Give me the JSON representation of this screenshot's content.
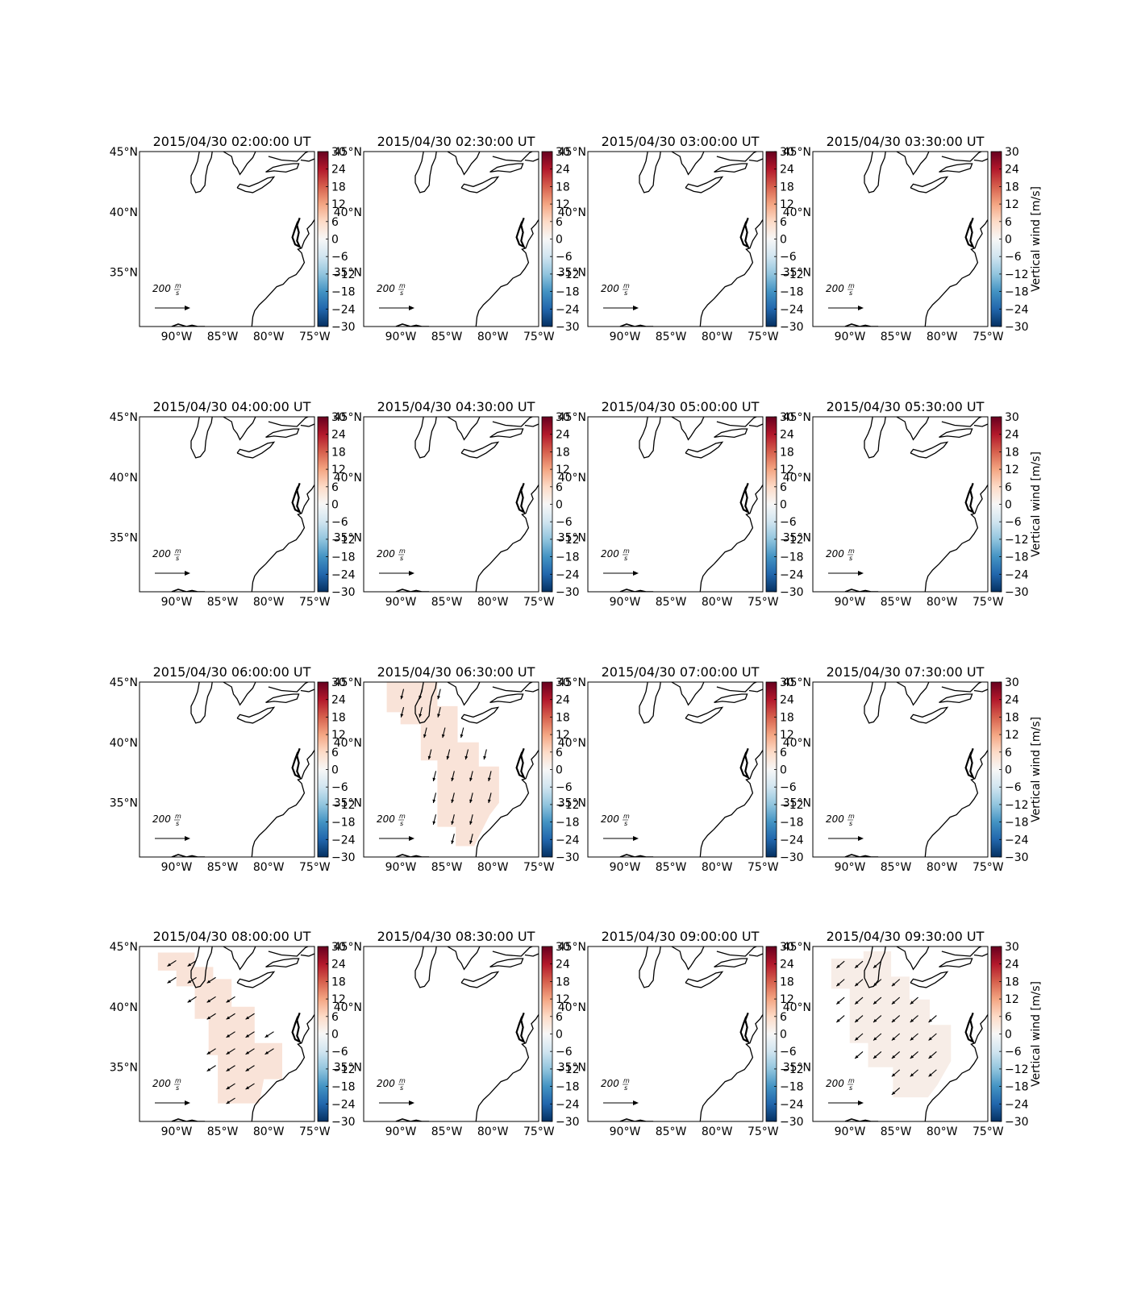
{
  "figure": {
    "colormap": [
      "#053061",
      "#2166ac",
      "#4393c3",
      "#92c5de",
      "#d1e5f0",
      "#f7f7f7",
      "#fddbc7",
      "#f4a582",
      "#d6604d",
      "#b2182b",
      "#67001f"
    ],
    "colorbar_ticks": [
      "30",
      "24",
      "18",
      "12",
      "6",
      "0",
      "−6",
      "−12",
      "−18",
      "−24",
      "−30"
    ],
    "colorbar_label": "Vertical wind [m/s]",
    "lat_ticks": [
      "45°N",
      "40°N",
      "35°N"
    ],
    "lon_ticks": [
      "90°W",
      "85°W",
      "80°W",
      "75°W"
    ],
    "reference_arrow_number": "200",
    "reference_arrow_unit_num": "m",
    "reference_arrow_unit_den": "s",
    "fill_color": "#f9e3d8",
    "fill_color_alt": "#f7ede7",
    "coastline_color": "#000000"
  },
  "chart_data": [
    {
      "type": "quiver-map",
      "title": "2015/04/30 02:00:00 UT",
      "field": "none",
      "colorbar_label_visible": false,
      "lat_range": [
        30.5,
        45
      ],
      "lon_range": [
        -93.5,
        -74.5
      ],
      "clim": [
        -30,
        30
      ]
    },
    {
      "type": "quiver-map",
      "title": "2015/04/30 02:30:00 UT",
      "field": "none",
      "colorbar_label_visible": false,
      "lat_range": [
        30.5,
        45
      ],
      "lon_range": [
        -93.5,
        -74.5
      ],
      "clim": [
        -30,
        30
      ]
    },
    {
      "type": "quiver-map",
      "title": "2015/04/30 03:00:00 UT",
      "field": "none",
      "colorbar_label_visible": false,
      "lat_range": [
        30.5,
        45
      ],
      "lon_range": [
        -93.5,
        -74.5
      ],
      "clim": [
        -30,
        30
      ]
    },
    {
      "type": "quiver-map",
      "title": "2015/04/30 03:30:00 UT",
      "field": "none",
      "colorbar_label_visible": true,
      "lat_range": [
        30.5,
        45
      ],
      "lon_range": [
        -93.5,
        -74.5
      ],
      "clim": [
        -30,
        30
      ]
    },
    {
      "type": "quiver-map",
      "title": "2015/04/30 04:00:00 UT",
      "field": "none",
      "colorbar_label_visible": false,
      "lat_range": [
        30.5,
        45
      ],
      "lon_range": [
        -93.5,
        -74.5
      ],
      "clim": [
        -30,
        30
      ]
    },
    {
      "type": "quiver-map",
      "title": "2015/04/30 04:30:00 UT",
      "field": "none",
      "colorbar_label_visible": false,
      "lat_range": [
        30.5,
        45
      ],
      "lon_range": [
        -93.5,
        -74.5
      ],
      "clim": [
        -30,
        30
      ]
    },
    {
      "type": "quiver-map",
      "title": "2015/04/30 05:00:00 UT",
      "field": "none",
      "colorbar_label_visible": false,
      "lat_range": [
        30.5,
        45
      ],
      "lon_range": [
        -93.5,
        -74.5
      ],
      "clim": [
        -30,
        30
      ]
    },
    {
      "type": "quiver-map",
      "title": "2015/04/30 05:30:00 UT",
      "field": "none",
      "colorbar_label_visible": true,
      "lat_range": [
        30.5,
        45
      ],
      "lon_range": [
        -93.5,
        -74.5
      ],
      "clim": [
        -30,
        30
      ]
    },
    {
      "type": "quiver-map",
      "title": "2015/04/30 06:00:00 UT",
      "field": "none",
      "colorbar_label_visible": false,
      "lat_range": [
        30.5,
        45
      ],
      "lon_range": [
        -93.5,
        -74.5
      ],
      "clim": [
        -30,
        30
      ]
    },
    {
      "type": "quiver-map",
      "title": "2015/04/30 06:30:00 UT",
      "field": "A",
      "colorbar_label_visible": false,
      "lat_range": [
        30.5,
        45
      ],
      "lon_range": [
        -93.5,
        -74.5
      ],
      "clim": [
        -30,
        30
      ]
    },
    {
      "type": "quiver-map",
      "title": "2015/04/30 07:00:00 UT",
      "field": "none",
      "colorbar_label_visible": false,
      "lat_range": [
        30.5,
        45
      ],
      "lon_range": [
        -93.5,
        -74.5
      ],
      "clim": [
        -30,
        30
      ]
    },
    {
      "type": "quiver-map",
      "title": "2015/04/30 07:30:00 UT",
      "field": "none",
      "colorbar_label_visible": true,
      "lat_range": [
        30.5,
        45
      ],
      "lon_range": [
        -93.5,
        -74.5
      ],
      "clim": [
        -30,
        30
      ]
    },
    {
      "type": "quiver-map",
      "title": "2015/04/30 08:00:00 UT",
      "field": "B",
      "colorbar_label_visible": false,
      "lat_range": [
        30.5,
        45
      ],
      "lon_range": [
        -93.5,
        -74.5
      ],
      "clim": [
        -30,
        30
      ]
    },
    {
      "type": "quiver-map",
      "title": "2015/04/30 08:30:00 UT",
      "field": "none",
      "colorbar_label_visible": false,
      "lat_range": [
        30.5,
        45
      ],
      "lon_range": [
        -93.5,
        -74.5
      ],
      "clim": [
        -30,
        30
      ]
    },
    {
      "type": "quiver-map",
      "title": "2015/04/30 09:00:00 UT",
      "field": "none",
      "colorbar_label_visible": false,
      "lat_range": [
        30.5,
        45
      ],
      "lon_range": [
        -93.5,
        -74.5
      ],
      "clim": [
        -30,
        30
      ]
    },
    {
      "type": "quiver-map",
      "title": "2015/04/30 09:30:00 UT",
      "field": "C",
      "colorbar_label_visible": true,
      "lat_range": [
        30.5,
        45
      ],
      "lon_range": [
        -93.5,
        -74.5
      ],
      "clim": [
        -30,
        30
      ]
    }
  ]
}
